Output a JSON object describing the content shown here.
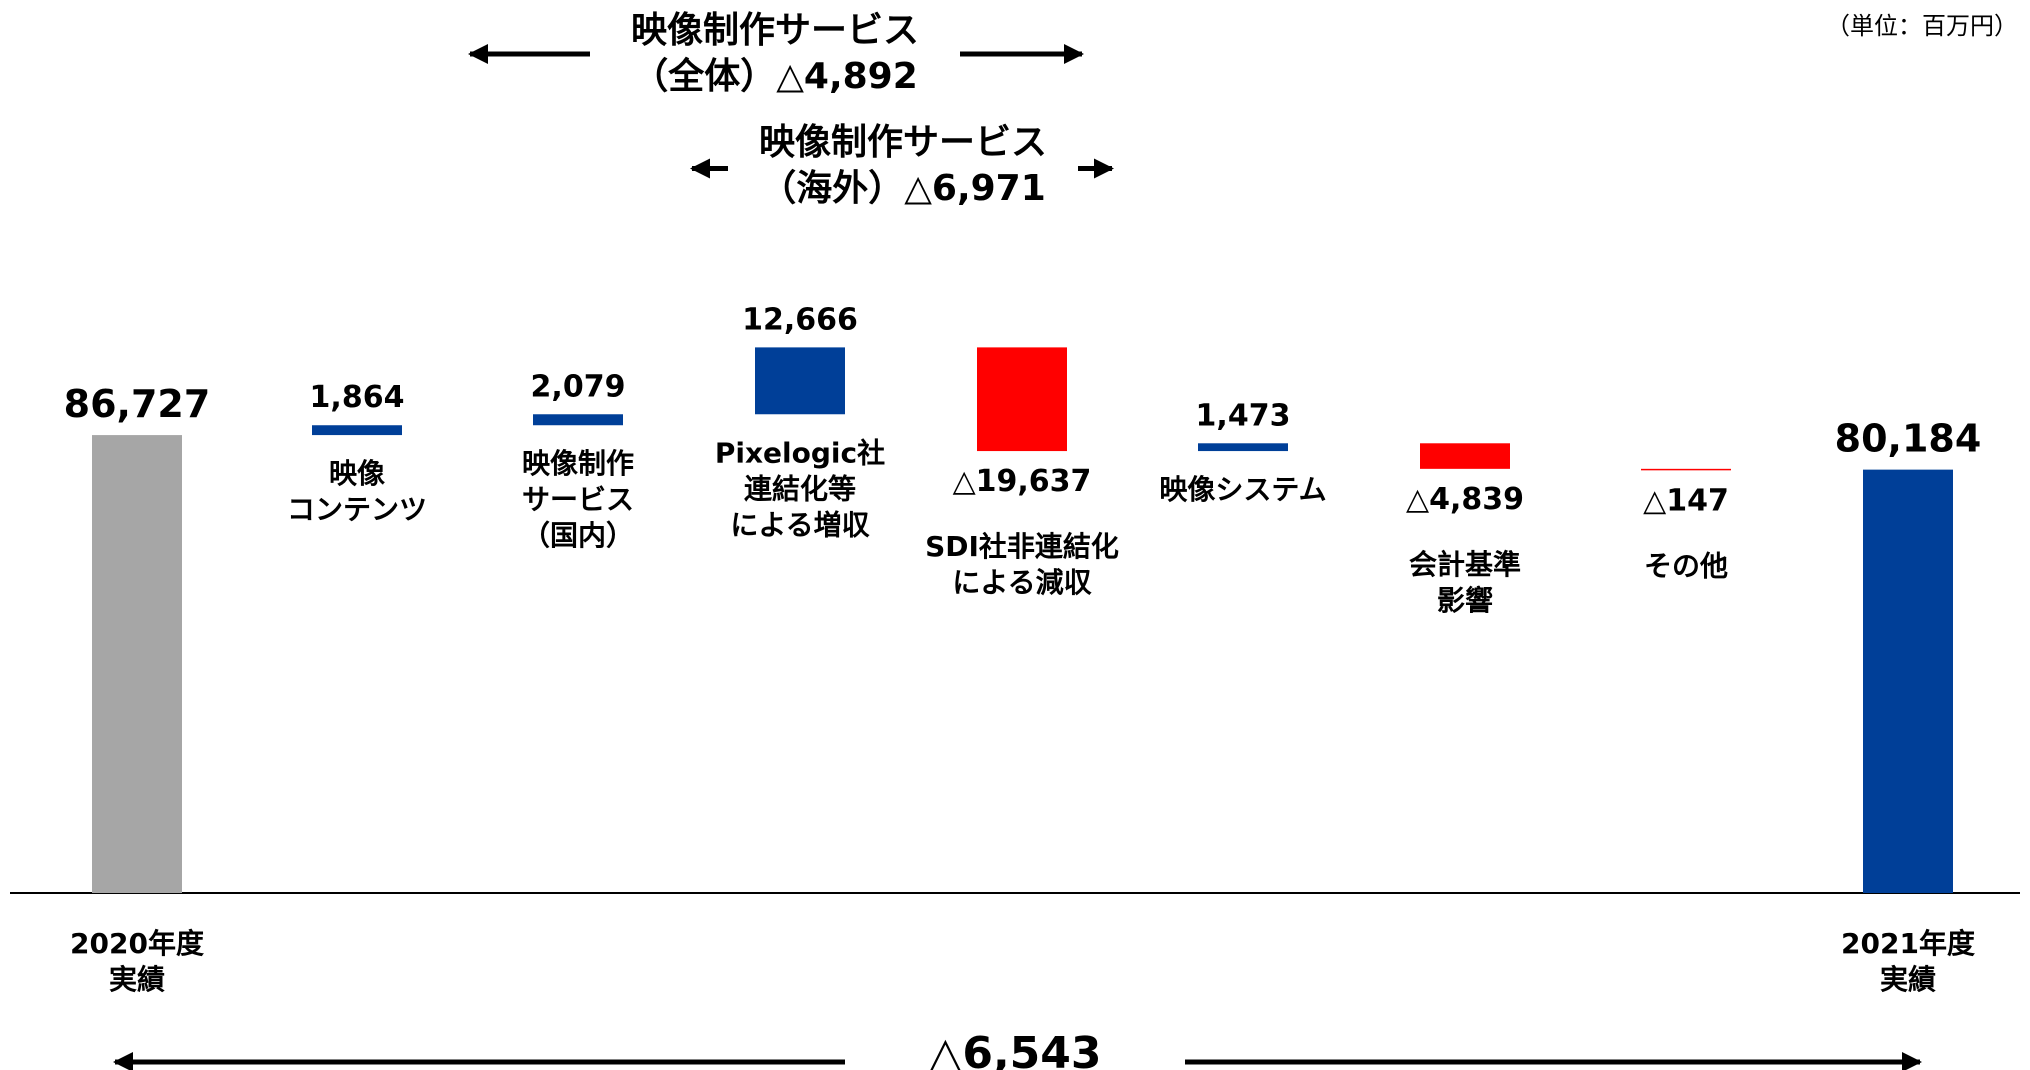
{
  "unit_label": "（単位：百万円）",
  "chart_data": {
    "type": "waterfall",
    "title": "",
    "xlabel": "",
    "ylabel": "",
    "ylim": [
      0,
      100000
    ],
    "grid": false,
    "legend": "none",
    "colors": {
      "total_start": "#a6a6a6",
      "increase": "#003f98",
      "decrease": "#ff0000",
      "total_end": "#003f98",
      "text": "#000000"
    },
    "items": [
      {
        "category": [
          "2020年度",
          "実績"
        ],
        "value": 86727,
        "value_label": "86,727",
        "kind": "total_start"
      },
      {
        "category": [
          "映像",
          "コンテンツ"
        ],
        "value": 1864,
        "value_label": "1,864",
        "kind": "increase"
      },
      {
        "category": [
          "映像制作",
          "サービス",
          "（国内）"
        ],
        "value": 2079,
        "value_label": "2,079",
        "kind": "increase"
      },
      {
        "category": [
          "Pixelogic社",
          "連結化等",
          "による増収"
        ],
        "value": 12666,
        "value_label": "12,666",
        "kind": "increase"
      },
      {
        "category": [
          "SDI社非連結化",
          "による減収"
        ],
        "value": -19637,
        "value_label": "△19,637",
        "kind": "decrease"
      },
      {
        "category": [
          "映像システム"
        ],
        "value": 1473,
        "value_label": "1,473",
        "kind": "increase"
      },
      {
        "category": [
          "会計基準",
          "影響"
        ],
        "value": -4839,
        "value_label": "△4,839",
        "kind": "decrease"
      },
      {
        "category": [
          "その他"
        ],
        "value": -147,
        "value_label": "△147",
        "kind": "decrease"
      },
      {
        "category": [
          "2021年度",
          "実績"
        ],
        "value": 80184,
        "value_label": "80,184",
        "kind": "total_end"
      }
    ],
    "annotations": [
      {
        "lines": [
          "映像制作サービス",
          "（全体）△4,892"
        ],
        "from_item": 2,
        "to_item": 4,
        "value": -4892
      },
      {
        "lines": [
          "映像制作サービス",
          "（海外）△6,971"
        ],
        "from_item": 3,
        "to_item": 4,
        "value": -6971
      },
      {
        "lines": [
          "△6,543"
        ],
        "from_item": 0,
        "to_item": 8,
        "value": -6543
      }
    ]
  }
}
